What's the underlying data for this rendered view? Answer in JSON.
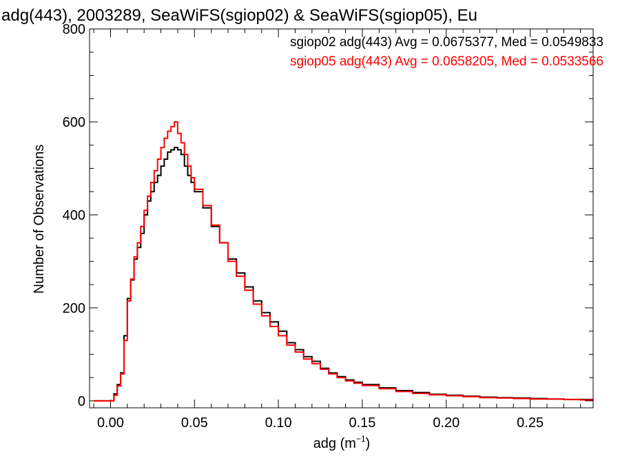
{
  "chart_data": {
    "type": "line",
    "title": "adg(443), 2003289, SeaWiFS(sgiop02) & SeaWiFS(sgiop05), Eu",
    "xlabel_main": "adg (m",
    "xlabel_sup": "−1",
    "xlabel_close": ")",
    "ylabel": "Number of Observations",
    "xlim": [
      -0.0125,
      0.2875
    ],
    "ylim": [
      -15,
      800
    ],
    "xticks": [
      0.0,
      0.05,
      0.1,
      0.15,
      0.2,
      0.25
    ],
    "xtick_labels": [
      "0.00",
      "0.05",
      "0.10",
      "0.15",
      "0.20",
      "0.25"
    ],
    "xminor_step": 0.01,
    "yticks": [
      0,
      200,
      400,
      600,
      800
    ],
    "ytick_labels": [
      "0",
      "200",
      "400",
      "600",
      "800"
    ],
    "yminor_step": 50,
    "legend_position": "top-right",
    "series": [
      {
        "name": "sgiop02",
        "label": "sgiop02 adg(443) Avg = 0.0675377, Med = 0.0549833",
        "color": "#000000",
        "x": [
          -0.01,
          0.0,
          0.002,
          0.004,
          0.006,
          0.008,
          0.01,
          0.012,
          0.014,
          0.016,
          0.018,
          0.02,
          0.022,
          0.024,
          0.026,
          0.028,
          0.03,
          0.032,
          0.034,
          0.036,
          0.038,
          0.04,
          0.042,
          0.044,
          0.046,
          0.048,
          0.05,
          0.055,
          0.06,
          0.065,
          0.07,
          0.075,
          0.08,
          0.085,
          0.09,
          0.095,
          0.1,
          0.105,
          0.11,
          0.115,
          0.12,
          0.125,
          0.13,
          0.135,
          0.14,
          0.145,
          0.15,
          0.16,
          0.17,
          0.18,
          0.19,
          0.2,
          0.21,
          0.22,
          0.23,
          0.24,
          0.25,
          0.26,
          0.27,
          0.28,
          0.287
        ],
        "y": [
          0,
          0,
          15,
          35,
          60,
          140,
          220,
          260,
          305,
          330,
          360,
          400,
          430,
          450,
          470,
          485,
          505,
          520,
          535,
          540,
          545,
          540,
          530,
          505,
          485,
          470,
          450,
          415,
          375,
          340,
          305,
          275,
          245,
          215,
          190,
          170,
          150,
          125,
          110,
          95,
          85,
          70,
          60,
          52,
          45,
          40,
          35,
          28,
          22,
          18,
          14,
          12,
          10,
          8,
          7,
          6,
          5,
          4,
          3,
          3,
          2
        ]
      },
      {
        "name": "sgiop05",
        "label": "sgiop05 adg(443) Avg = 0.0658205, Med = 0.0533566",
        "color": "#ff0000",
        "x": [
          -0.01,
          0.0,
          0.002,
          0.004,
          0.006,
          0.008,
          0.01,
          0.012,
          0.014,
          0.016,
          0.018,
          0.02,
          0.022,
          0.024,
          0.026,
          0.028,
          0.03,
          0.032,
          0.034,
          0.036,
          0.038,
          0.04,
          0.042,
          0.044,
          0.046,
          0.048,
          0.05,
          0.055,
          0.06,
          0.065,
          0.07,
          0.075,
          0.08,
          0.085,
          0.09,
          0.095,
          0.1,
          0.105,
          0.11,
          0.115,
          0.12,
          0.125,
          0.13,
          0.135,
          0.14,
          0.145,
          0.15,
          0.16,
          0.17,
          0.18,
          0.19,
          0.2,
          0.21,
          0.22,
          0.23,
          0.24,
          0.25,
          0.26,
          0.27,
          0.28,
          0.287
        ],
        "y": [
          0,
          0,
          12,
          32,
          58,
          130,
          215,
          262,
          310,
          340,
          375,
          410,
          440,
          470,
          495,
          520,
          545,
          565,
          580,
          590,
          600,
          575,
          555,
          530,
          505,
          480,
          455,
          420,
          378,
          340,
          300,
          268,
          238,
          208,
          183,
          160,
          140,
          120,
          105,
          90,
          80,
          68,
          58,
          50,
          43,
          38,
          33,
          26,
          20,
          16,
          13,
          11,
          9,
          7,
          6,
          5,
          4,
          4,
          3,
          2,
          2
        ]
      }
    ]
  }
}
